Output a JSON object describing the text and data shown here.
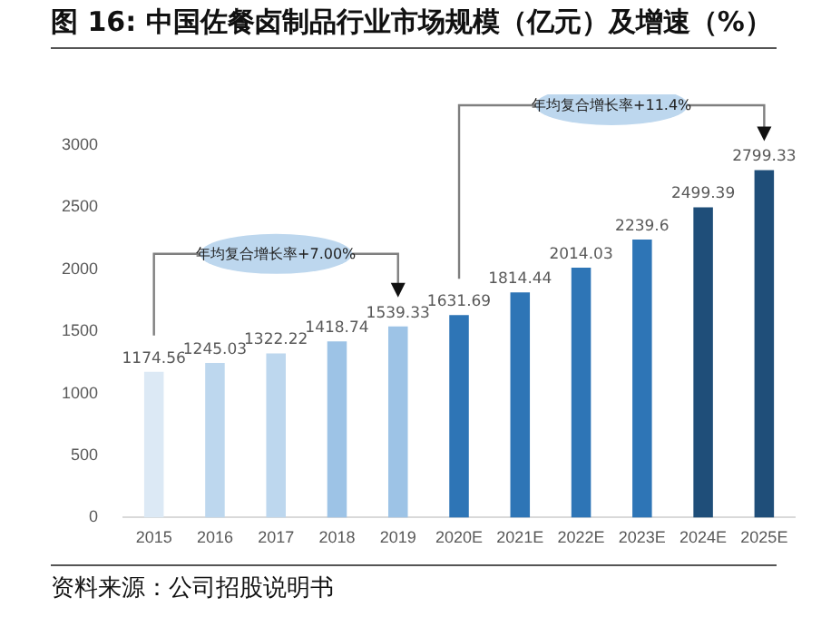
{
  "chart_data": {
    "type": "bar",
    "title": "图 16:  中国佐餐卤制品行业市场规模（亿元）及增速（%）",
    "categories": [
      "2015",
      "2016",
      "2017",
      "2018",
      "2019",
      "2020E",
      "2021E",
      "2022E",
      "2023E",
      "2024E",
      "2025E"
    ],
    "values": [
      1174.56,
      1245.03,
      1322.22,
      1418.74,
      1539.33,
      1631.69,
      1814.44,
      2014.03,
      2239.6,
      2499.39,
      2799.33
    ],
    "colors": [
      "#dce9f5",
      "#bdd7ee",
      "#bdd7ee",
      "#9dc3e6",
      "#9dc3e6",
      "#2e75b6",
      "#2e75b6",
      "#2e75b6",
      "#2e75b6",
      "#1f4e79",
      "#1f4e79"
    ],
    "ylim": [
      0,
      3000
    ],
    "yticks": [
      0,
      500,
      1000,
      1500,
      2000,
      2500,
      3000
    ],
    "grid": false,
    "legend": false,
    "data_labels": true,
    "annotations": [
      "年均复合增长率+7.00%",
      "年均复合增长率+11.4%",
      "资料来源：公司招股说明书"
    ]
  }
}
